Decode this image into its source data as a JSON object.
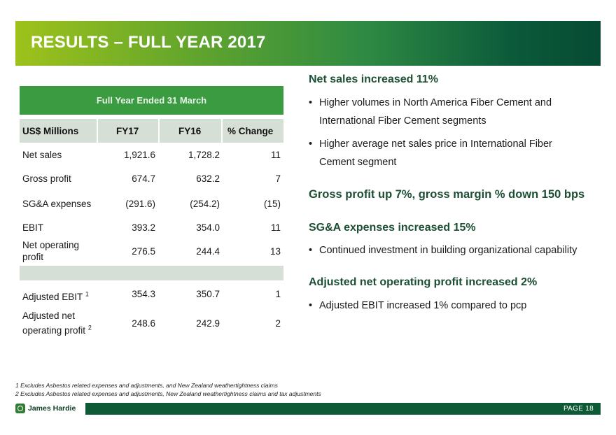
{
  "title": "RESULTS – FULL YEAR 2017",
  "table": {
    "header": "Full Year Ended 31 March",
    "columns": [
      "US$ Millions",
      "FY17",
      "FY16",
      "% Change"
    ],
    "rows": [
      {
        "label": "Net sales",
        "fy17": "1,921.6",
        "fy16": "1,728.2",
        "change": "11"
      },
      {
        "label": "Gross profit",
        "fy17": "674.7",
        "fy16": "632.2",
        "change": "7"
      },
      {
        "label": "SG&A expenses",
        "fy17": "(291.6)",
        "fy16": "(254.2)",
        "change": "(15)"
      },
      {
        "label": "EBIT",
        "fy17": "393.2",
        "fy16": "354.0",
        "change": "11"
      },
      {
        "label_line1": "Net operating",
        "label_line2": "profit",
        "fy17": "276.5",
        "fy16": "244.4",
        "change": "13"
      }
    ],
    "adjusted_rows": [
      {
        "label": "Adjusted EBIT",
        "sup": "1",
        "fy17": "354.3",
        "fy16": "350.7",
        "change": "1"
      },
      {
        "label_line1": "Adjusted net",
        "label_line2": "operating profit",
        "sup": "2",
        "fy17": "248.6",
        "fy16": "242.9",
        "change": "2"
      }
    ]
  },
  "right": {
    "h1": "Net sales increased 11%",
    "b1a_line1": "Higher volumes in North America Fiber Cement and",
    "b1a_line2": "International Fiber Cement segments",
    "b1b_line1": "Higher average net sales price in International Fiber",
    "b1b_line2": "Cement segment",
    "h2": "Gross profit up 7%, gross margin % down 150 bps",
    "h3": "SG&A expenses increased 15%",
    "b3": "Continued investment in building organizational capability",
    "h4": "Adjusted net operating profit increased 2%",
    "b4": "Adjusted EBIT increased 1% compared to pcp",
    "bullet_char": "•"
  },
  "footnotes": [
    "1  Excludes Asbestos related expenses and adjustments, and New Zealand weathertightness claims",
    "2  Excludes Asbestos related expenses and adjustments, New Zealand weathertightness claims and tax adjustments"
  ],
  "footer": {
    "logo_text": "James Hardie",
    "page_label": "PAGE  18"
  },
  "colors": {
    "header_green": "#3b9b41",
    "band_gray": "#d6dfd5",
    "heading_green": "#1c4f33",
    "footer_green": "#0f5a36"
  }
}
